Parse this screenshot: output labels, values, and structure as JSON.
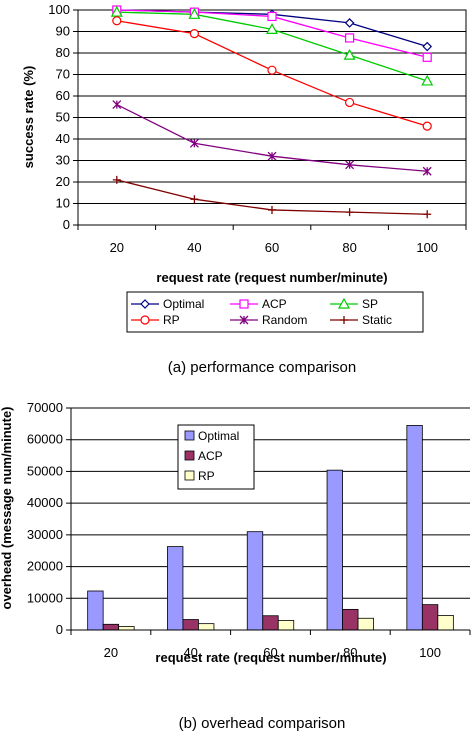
{
  "chart_data": [
    {
      "type": "line",
      "caption": "(a) performance comparison",
      "xlabel": "request rate (request number/minute)",
      "ylabel": "success rate (%)",
      "x": [
        20,
        40,
        60,
        80,
        100
      ],
      "ylim": [
        0,
        100
      ],
      "yticks": [
        0,
        10,
        20,
        30,
        40,
        50,
        60,
        70,
        80,
        90,
        100
      ],
      "grid": true,
      "legend": "bottom",
      "series": [
        {
          "name": "Optimal",
          "values": [
            100,
            99,
            98,
            94,
            83
          ],
          "color": "#000080",
          "marker": "diamond"
        },
        {
          "name": "ACP",
          "values": [
            100,
            99,
            97,
            87,
            78
          ],
          "color": "#ff00ff",
          "marker": "square"
        },
        {
          "name": "SP",
          "values": [
            99,
            98,
            91,
            79,
            67
          ],
          "color": "#00cc00",
          "marker": "triangle"
        },
        {
          "name": "RP",
          "values": [
            95,
            89,
            72,
            57,
            46
          ],
          "color": "#ff0000",
          "marker": "circle"
        },
        {
          "name": "Random",
          "values": [
            56,
            38,
            32,
            28,
            25
          ],
          "color": "#800080",
          "marker": "star"
        },
        {
          "name": "Static",
          "values": [
            21,
            12,
            7,
            6,
            5
          ],
          "color": "#800000",
          "marker": "plus"
        }
      ]
    },
    {
      "type": "bar",
      "caption": "(b) overhead comparison",
      "xlabel": "request rate (request number/minute)",
      "ylabel": "overhead (message num/minute)",
      "categories": [
        "20",
        "40",
        "60",
        "80",
        "100"
      ],
      "ylim": [
        0,
        70000
      ],
      "yticks": [
        0,
        10000,
        20000,
        30000,
        40000,
        50000,
        60000,
        70000
      ],
      "grid": true,
      "legend": "top-left",
      "series": [
        {
          "name": "Optimal",
          "values": [
            12300,
            26300,
            31000,
            50400,
            64500
          ],
          "color": "#9999ff"
        },
        {
          "name": "ACP",
          "values": [
            1800,
            3300,
            4500,
            6500,
            8000
          ],
          "color": "#993366"
        },
        {
          "name": "RP",
          "values": [
            1100,
            2000,
            3000,
            3700,
            4600
          ],
          "color": "#ffffcc"
        }
      ]
    }
  ]
}
